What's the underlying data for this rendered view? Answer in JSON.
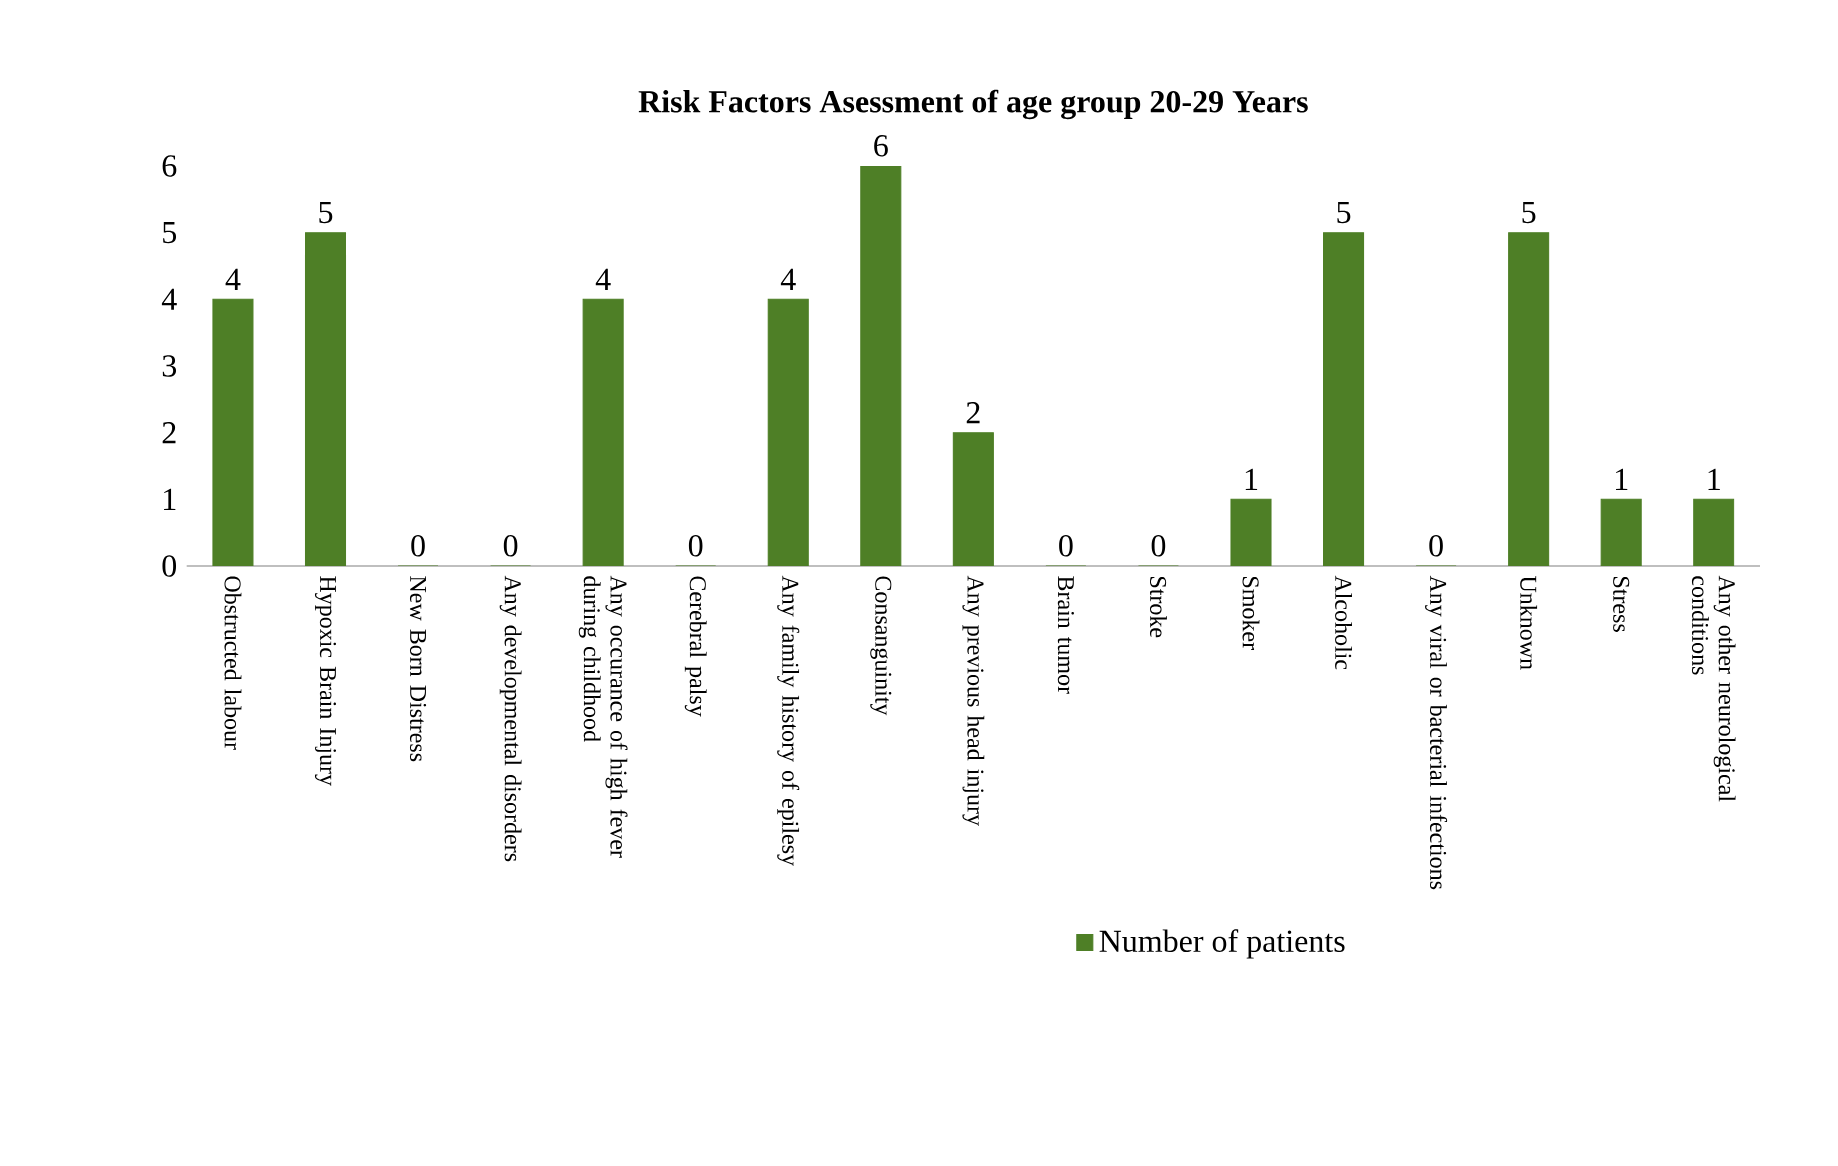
{
  "chart_data": {
    "type": "bar",
    "title": "Risk Factors  Asessment of age group  20-29  Years",
    "categories": [
      "Obstructed labour",
      "Hypoxic Brain Injury",
      "New Born Distress",
      "Any developmental disorders",
      "Any occurance of high fever during childhood",
      "Cerebral palsy",
      "Any family history of epilesy",
      "Consanguinity",
      "Any previous head injury",
      "Brain tumor",
      "Stroke",
      "Smoker",
      "Alcoholic",
      "Any viral or bacterial infections",
      "Unknown",
      "Stress",
      "Any other neurological conditions"
    ],
    "series": [
      {
        "name": "Number of patients",
        "color": "#4e7f26",
        "values": [
          4,
          5,
          0,
          0,
          4,
          0,
          4,
          6,
          2,
          0,
          0,
          1,
          5,
          0,
          5,
          1,
          1
        ]
      }
    ],
    "ylim": [
      0,
      6
    ],
    "yticks": [
      0,
      1,
      2,
      3,
      4,
      5,
      6
    ],
    "data_labels": true,
    "legend": "bottom",
    "grid": false
  }
}
